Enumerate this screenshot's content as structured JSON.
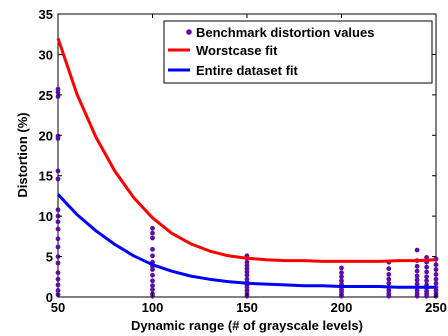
{
  "chart_data": {
    "type": "scatter",
    "xlabel": "Dynamic range (# of grayscale levels)",
    "ylabel": "Distortion (%)",
    "xlim": [
      50,
      250
    ],
    "ylim": [
      0,
      35
    ],
    "xticks": [
      50,
      100,
      150,
      200,
      250
    ],
    "yticks": [
      0,
      5,
      10,
      15,
      20,
      25,
      30,
      35
    ],
    "grid": false,
    "legend_position": "top-right",
    "legend": [
      {
        "label": "Benchmark distortion values",
        "kind": "marker",
        "color": "#5b0fa8"
      },
      {
        "label": "Worstcase fit",
        "kind": "line",
        "color": "#ff0000"
      },
      {
        "label": "Entire dataset fit",
        "kind": "line",
        "color": "#0000ff"
      }
    ],
    "series": [
      {
        "name": "Benchmark distortion values",
        "kind": "scatter",
        "color": "#5b0fa8",
        "points": [
          [
            50,
            0.3
          ],
          [
            50,
            0.8
          ],
          [
            50,
            1.5
          ],
          [
            50,
            2.2
          ],
          [
            50,
            3.0
          ],
          [
            50,
            4.2
          ],
          [
            50,
            5.0
          ],
          [
            50,
            6.2
          ],
          [
            50,
            7.2
          ],
          [
            50,
            8.4
          ],
          [
            50,
            9.3
          ],
          [
            50,
            10.0
          ],
          [
            50,
            10.8
          ],
          [
            50,
            14.6
          ],
          [
            50,
            15.6
          ],
          [
            50,
            19.6
          ],
          [
            50,
            19.9
          ],
          [
            50,
            24.8
          ],
          [
            50,
            25.3
          ],
          [
            50,
            25.7
          ],
          [
            100,
            0.1
          ],
          [
            100,
            0.4
          ],
          [
            100,
            0.9
          ],
          [
            100,
            1.4
          ],
          [
            100,
            2.0
          ],
          [
            100,
            2.7
          ],
          [
            100,
            3.4
          ],
          [
            100,
            3.8
          ],
          [
            100,
            4.3
          ],
          [
            100,
            5.1
          ],
          [
            100,
            5.9
          ],
          [
            100,
            7.3
          ],
          [
            100,
            7.9
          ],
          [
            100,
            8.5
          ],
          [
            150,
            0.1
          ],
          [
            150,
            0.4
          ],
          [
            150,
            0.8
          ],
          [
            150,
            1.2
          ],
          [
            150,
            1.5
          ],
          [
            150,
            1.8
          ],
          [
            150,
            2.2
          ],
          [
            150,
            2.7
          ],
          [
            150,
            3.1
          ],
          [
            150,
            3.5
          ],
          [
            150,
            3.9
          ],
          [
            150,
            4.3
          ],
          [
            150,
            4.8
          ],
          [
            150,
            5.1
          ],
          [
            200,
            0.1
          ],
          [
            200,
            0.3
          ],
          [
            200,
            0.6
          ],
          [
            200,
            0.9
          ],
          [
            200,
            1.2
          ],
          [
            200,
            1.6
          ],
          [
            200,
            2.0
          ],
          [
            200,
            2.5
          ],
          [
            200,
            3.0
          ],
          [
            200,
            3.6
          ],
          [
            225,
            0.1
          ],
          [
            225,
            0.4
          ],
          [
            225,
            0.8
          ],
          [
            225,
            1.2
          ],
          [
            225,
            1.7
          ],
          [
            225,
            2.2
          ],
          [
            225,
            2.8
          ],
          [
            225,
            3.5
          ],
          [
            225,
            4.3
          ],
          [
            240,
            0.1
          ],
          [
            240,
            0.4
          ],
          [
            240,
            0.8
          ],
          [
            240,
            1.2
          ],
          [
            240,
            1.6
          ],
          [
            240,
            2.1
          ],
          [
            240,
            2.6
          ],
          [
            240,
            3.2
          ],
          [
            240,
            3.8
          ],
          [
            240,
            4.5
          ],
          [
            240,
            5.8
          ],
          [
            245,
            0.1
          ],
          [
            245,
            0.4
          ],
          [
            245,
            0.7
          ],
          [
            245,
            1.1
          ],
          [
            245,
            1.5
          ],
          [
            245,
            2.0
          ],
          [
            245,
            2.5
          ],
          [
            245,
            3.1
          ],
          [
            245,
            3.7
          ],
          [
            245,
            4.3
          ],
          [
            245,
            4.9
          ],
          [
            250,
            0.1
          ],
          [
            250,
            0.4
          ],
          [
            250,
            0.8
          ],
          [
            250,
            1.2
          ],
          [
            250,
            1.7
          ],
          [
            250,
            2.2
          ],
          [
            250,
            2.8
          ],
          [
            250,
            3.4
          ],
          [
            250,
            4.0
          ],
          [
            250,
            4.7
          ]
        ]
      },
      {
        "name": "Worstcase fit",
        "kind": "line",
        "color": "#ff0000",
        "x": [
          50,
          60,
          70,
          80,
          90,
          100,
          110,
          120,
          130,
          140,
          150,
          160,
          170,
          180,
          190,
          200,
          210,
          220,
          230,
          240,
          250
        ],
        "y": [
          32.0,
          25.1,
          19.8,
          15.6,
          12.3,
          9.8,
          7.9,
          6.6,
          5.7,
          5.1,
          4.8,
          4.6,
          4.5,
          4.5,
          4.4,
          4.4,
          4.4,
          4.4,
          4.5,
          4.5,
          4.6
        ]
      },
      {
        "name": "Entire dataset fit",
        "kind": "line",
        "color": "#0000ff",
        "x": [
          50,
          60,
          70,
          80,
          90,
          100,
          110,
          120,
          130,
          140,
          150,
          160,
          170,
          180,
          190,
          200,
          210,
          220,
          230,
          240,
          250
        ],
        "y": [
          12.7,
          10.2,
          8.2,
          6.5,
          5.1,
          4.0,
          3.2,
          2.6,
          2.2,
          1.9,
          1.7,
          1.6,
          1.5,
          1.4,
          1.4,
          1.3,
          1.3,
          1.3,
          1.2,
          1.2,
          1.2
        ]
      }
    ]
  }
}
